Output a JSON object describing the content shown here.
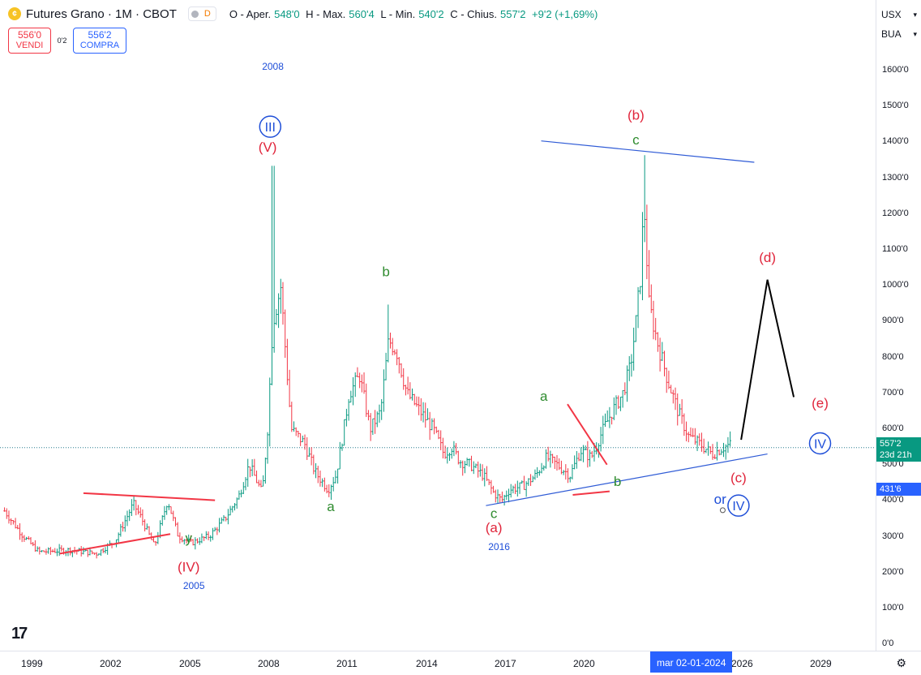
{
  "header": {
    "symbol_icon": "coin-icon",
    "title": "Futures Grano · 1M · CBOT",
    "data_flag": "D",
    "ohlc": {
      "o_label": "O - Aper.",
      "o_value": "548'0",
      "h_label": "H - Max.",
      "h_value": "560'4",
      "l_label": "L - Min.",
      "l_value": "540'2",
      "c_label": "C - Chius.",
      "c_value": "557'2",
      "change": "+9'2 (+1,69%)"
    }
  },
  "trade": {
    "sell_price": "556'0",
    "sell_label": "VENDI",
    "spread": "0'2",
    "buy_price": "556'2",
    "buy_label": "COMPRA"
  },
  "right_panel": {
    "currency": "USX",
    "unit": "BUA",
    "y_ticks": [
      "1600'0",
      "1500'0",
      "1400'0",
      "1300'0",
      "1200'0",
      "1100'0",
      "1000'0",
      "900'0",
      "800'0",
      "700'0",
      "600'0",
      "500'0",
      "400'0",
      "300'0",
      "200'0",
      "100'0",
      "0'0"
    ],
    "current_price": "557'2",
    "countdown": "23d 21h",
    "marker_price": "431'6"
  },
  "x_axis": {
    "ticks": [
      "1999",
      "2002",
      "2005",
      "2008",
      "2011",
      "2014",
      "2017",
      "2020",
      "2026",
      "2029"
    ],
    "cursor_date": "mar 02-01-2024"
  },
  "colors": {
    "up": "#089981",
    "down": "#f23645",
    "blue": "#2962ff",
    "wave_red": "#e0253b",
    "wave_green": "#2e8b2e",
    "wave_blue": "#1e4ed8"
  },
  "chart_data": {
    "type": "candlestick",
    "title": "Futures Grano · 1M · CBOT",
    "x_range": [
      1998,
      2030
    ],
    "y_range": [
      0,
      1650
    ],
    "y_unit": "cents/bushel",
    "last_price": 557.25,
    "anchors": [
      [
        1998.0,
        370
      ],
      [
        1998.7,
        300
      ],
      [
        1999.3,
        255
      ],
      [
        2000.5,
        260
      ],
      [
        2001.5,
        250
      ],
      [
        2002.2,
        285
      ],
      [
        2002.9,
        390
      ],
      [
        2003.2,
        350
      ],
      [
        2003.7,
        270
      ],
      [
        2004.2,
        400
      ],
      [
        2004.6,
        300
      ],
      [
        2005.1,
        280
      ],
      [
        2005.8,
        300
      ],
      [
        2006.4,
        350
      ],
      [
        2006.9,
        410
      ],
      [
        2007.3,
        500
      ],
      [
        2007.8,
        420
      ],
      [
        2008.0,
        600
      ],
      [
        2008.2,
        900
      ],
      [
        2008.5,
        1000
      ],
      [
        2008.9,
        600
      ],
      [
        2009.4,
        560
      ],
      [
        2009.8,
        480
      ],
      [
        2010.3,
        430
      ],
      [
        2010.6,
        470
      ],
      [
        2010.9,
        600
      ],
      [
        2011.1,
        700
      ],
      [
        2011.5,
        750
      ],
      [
        2011.9,
        600
      ],
      [
        2012.3,
        650
      ],
      [
        2012.6,
        850
      ],
      [
        2012.9,
        820
      ],
      [
        2013.3,
        700
      ],
      [
        2013.8,
        650
      ],
      [
        2014.3,
        600
      ],
      [
        2014.7,
        530
      ],
      [
        2015.0,
        550
      ],
      [
        2015.3,
        510
      ],
      [
        2015.7,
        500
      ],
      [
        2016.2,
        470
      ],
      [
        2016.6,
        420
      ],
      [
        2016.9,
        400
      ],
      [
        2017.2,
        430
      ],
      [
        2017.7,
        440
      ],
      [
        2018.2,
        470
      ],
      [
        2018.6,
        520
      ],
      [
        2019.0,
        500
      ],
      [
        2019.5,
        470
      ],
      [
        2019.9,
        540
      ],
      [
        2020.3,
        520
      ],
      [
        2020.7,
        590
      ],
      [
        2021.1,
        650
      ],
      [
        2021.5,
        700
      ],
      [
        2021.8,
        780
      ],
      [
        2022.0,
        900
      ],
      [
        2022.2,
        1050
      ],
      [
        2022.3,
        1250
      ],
      [
        2022.5,
        950
      ],
      [
        2022.8,
        850
      ],
      [
        2023.2,
        740
      ],
      [
        2023.6,
        650
      ],
      [
        2024.0,
        580
      ],
      [
        2024.4,
        560
      ],
      [
        2024.9,
        530
      ],
      [
        2025.3,
        548
      ],
      [
        2025.6,
        557
      ]
    ],
    "wave_labels": [
      {
        "text": "(V)",
        "x": 2008.0,
        "y": 1380,
        "color": "red"
      },
      {
        "text": "2008",
        "x": 2008.2,
        "y": 1610,
        "color": "blue"
      },
      {
        "text": "(IV)",
        "x": 2005.0,
        "y": 200,
        "color": "red"
      },
      {
        "text": "2005",
        "x": 2005.2,
        "y": 150,
        "color": "blue"
      },
      {
        "text": "y",
        "x": 2005.0,
        "y": 280,
        "color": "green"
      },
      {
        "text": "a",
        "x": 2010.4,
        "y": 370,
        "color": "green"
      },
      {
        "text": "b",
        "x": 2012.5,
        "y": 1030,
        "color": "green"
      },
      {
        "text": "c",
        "x": 2016.6,
        "y": 350,
        "color": "green"
      },
      {
        "text": "(a)",
        "x": 2016.6,
        "y": 310,
        "color": "red"
      },
      {
        "text": "2016",
        "x": 2016.8,
        "y": 260,
        "color": "blue"
      },
      {
        "text": "a",
        "x": 2018.5,
        "y": 680,
        "color": "green"
      },
      {
        "text": "b",
        "x": 2021.3,
        "y": 440,
        "color": "green"
      },
      {
        "text": "(b)",
        "x": 2022.0,
        "y": 1470,
        "color": "red"
      },
      {
        "text": "c",
        "x": 2022.0,
        "y": 1400,
        "color": "green"
      },
      {
        "text": "(c)",
        "x": 2025.9,
        "y": 450,
        "color": "red"
      },
      {
        "text": "(d)",
        "x": 2027.0,
        "y": 1070,
        "color": "red"
      },
      {
        "text": "(e)",
        "x": 2029.0,
        "y": 660,
        "color": "red"
      }
    ],
    "circle_labels": [
      {
        "text": "III",
        "x": 2008.1,
        "y": 1450
      },
      {
        "text": "IV",
        "x": 2025.9,
        "y": 385
      },
      {
        "text": "IV",
        "x": 2029.0,
        "y": 560
      }
    ],
    "extra_text": [
      {
        "text": "or",
        "x": 2025.2,
        "y": 390,
        "color": "blue"
      }
    ],
    "trendlines": [
      {
        "color": "red",
        "from": [
          2000.1,
          250
        ],
        "to": [
          2004.3,
          305
        ]
      },
      {
        "color": "red",
        "from": [
          2001.0,
          420
        ],
        "to": [
          2006.0,
          400
        ]
      },
      {
        "color": "blue",
        "from": [
          2016.3,
          385
        ],
        "to": [
          2027.0,
          530
        ]
      },
      {
        "color": "blue",
        "from": [
          2018.4,
          1410
        ],
        "to": [
          2026.5,
          1350
        ]
      },
      {
        "color": "red",
        "from": [
          2019.4,
          670
        ],
        "to": [
          2020.9,
          500
        ]
      },
      {
        "color": "red",
        "from": [
          2019.6,
          415
        ],
        "to": [
          2021.0,
          425
        ]
      }
    ],
    "projection": [
      [
        2026.0,
        570
      ],
      [
        2027.0,
        1020
      ],
      [
        2028.0,
        690
      ]
    ],
    "current_line": 548
  }
}
